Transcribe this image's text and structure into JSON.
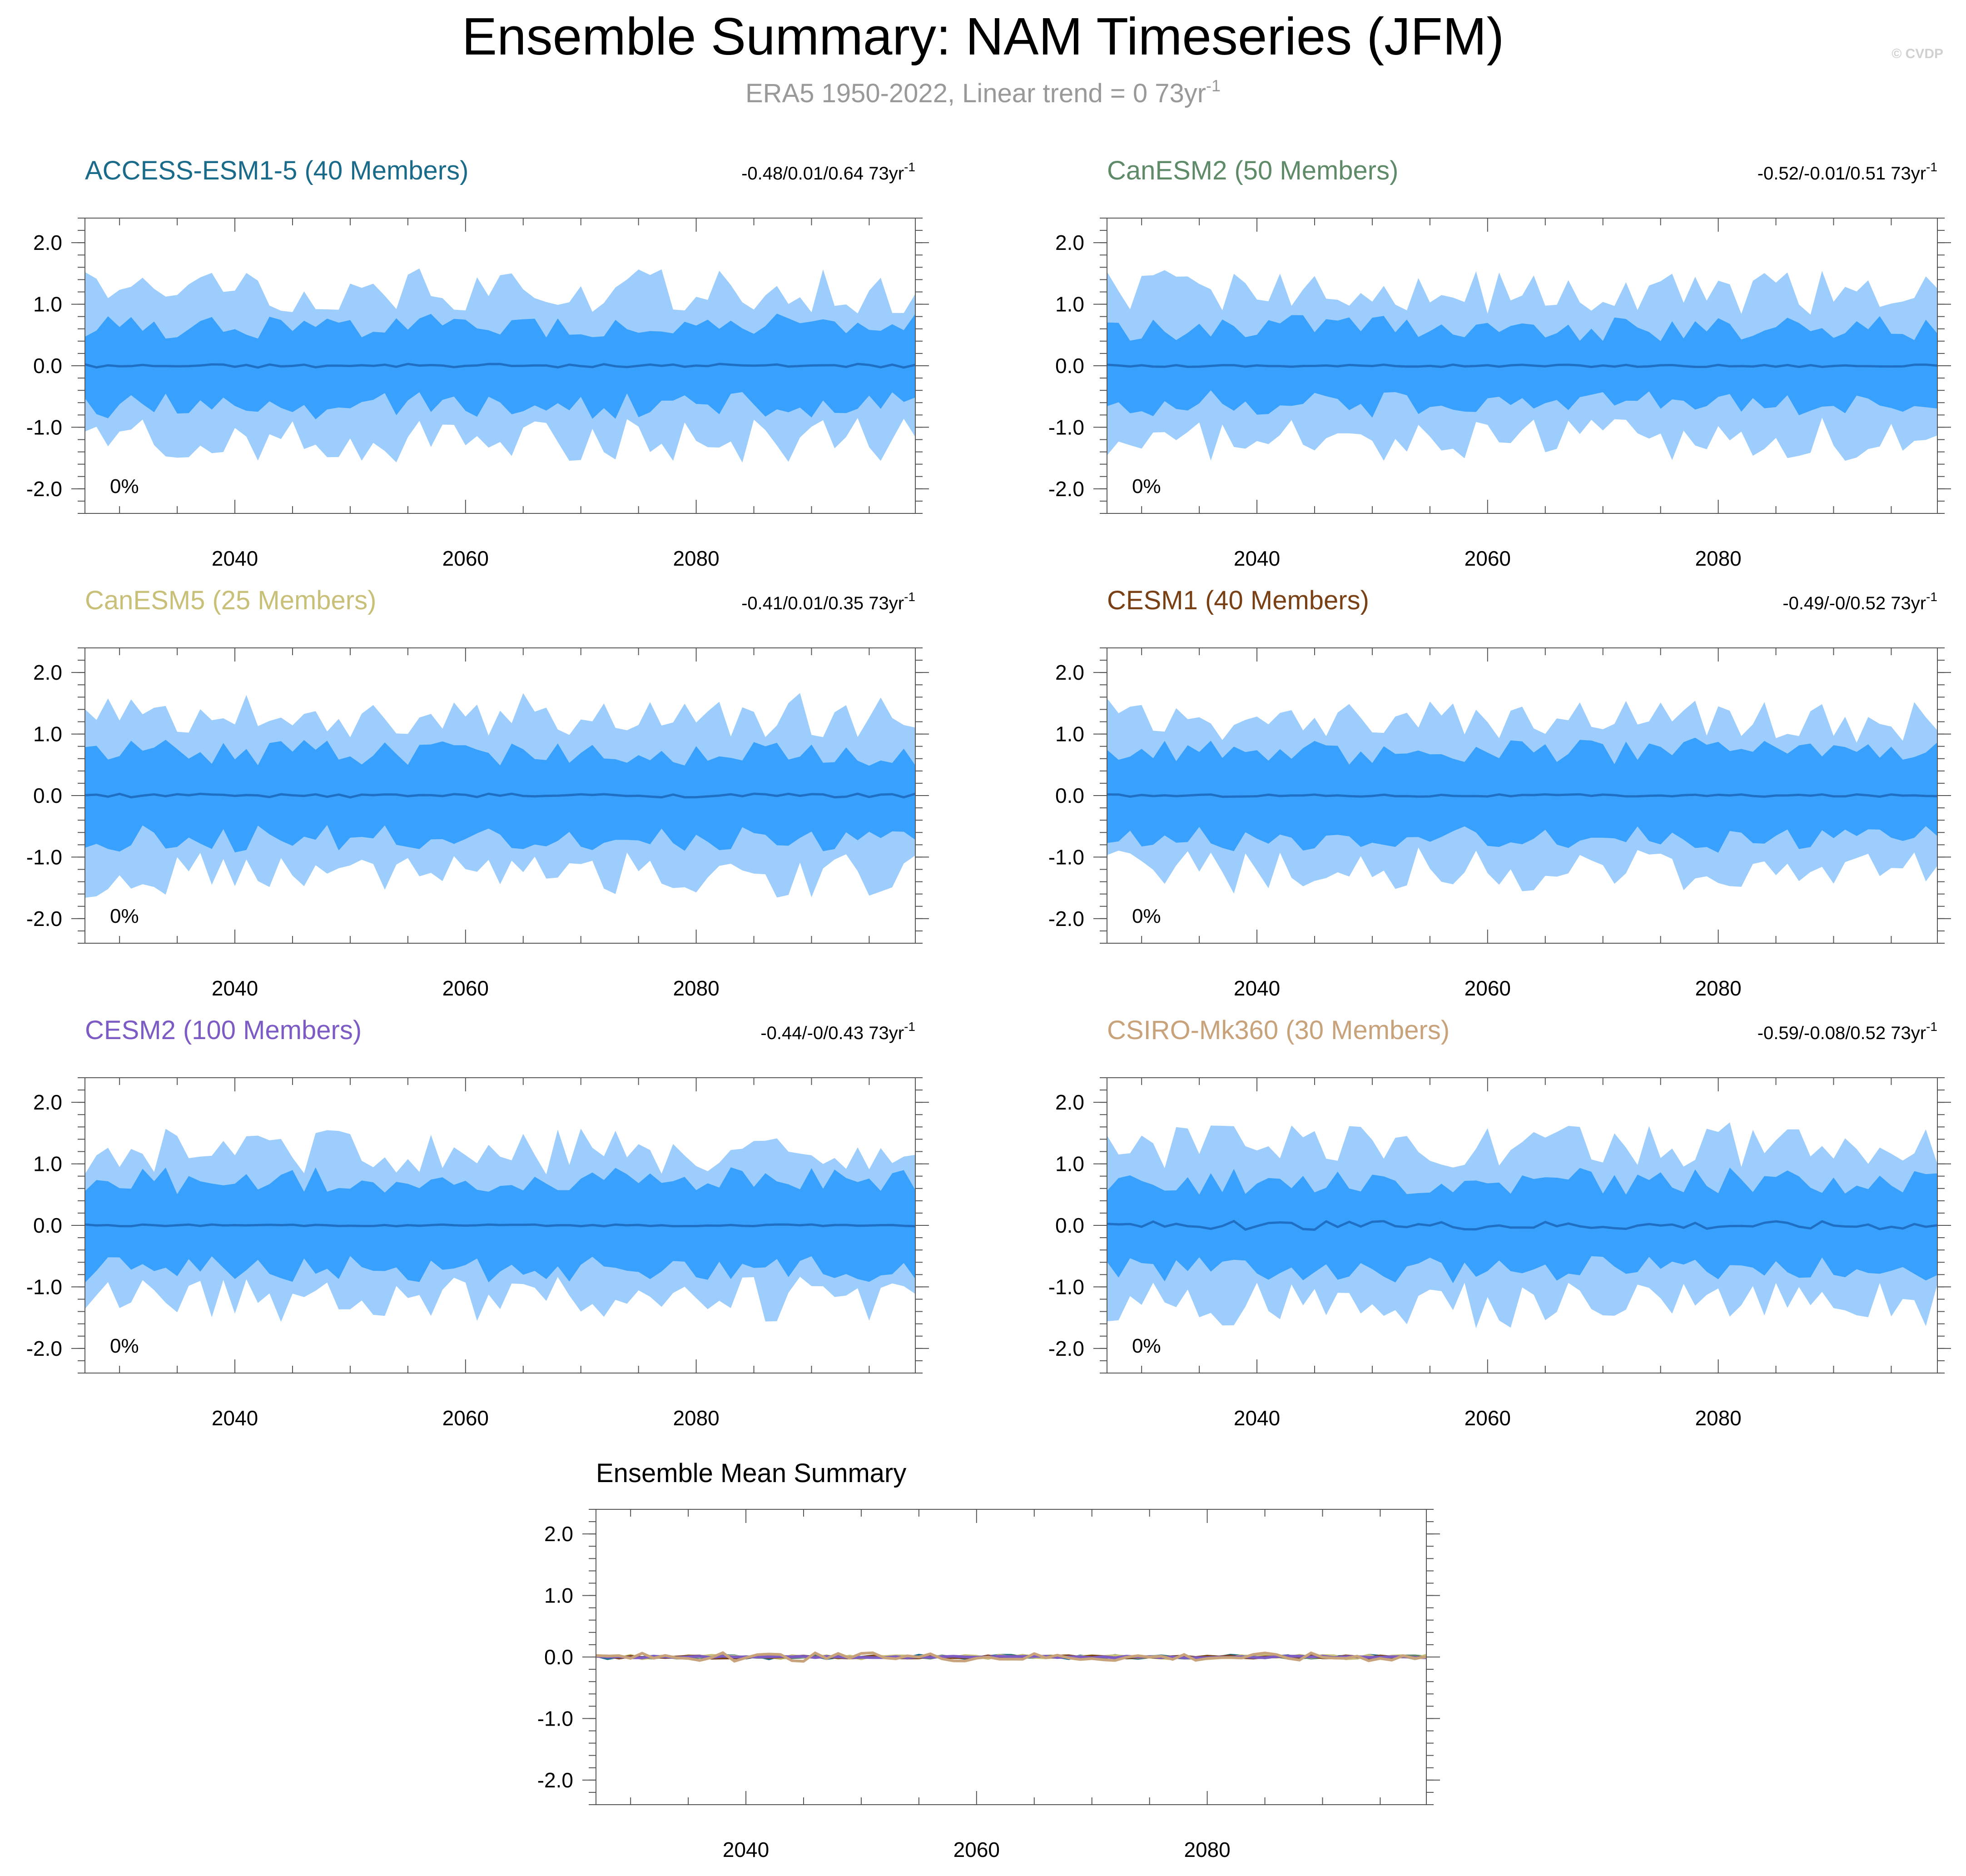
{
  "header": {
    "title": "Ensemble Summary: NAM Timeseries (JFM)",
    "subtitle_main": "ERA5 1950-2022, Linear trend = 0 73yr",
    "subtitle_sup": "-1",
    "credit": "© CVDP"
  },
  "colors": {
    "outer_band": "#9dcdfd",
    "inner_band": "#38a0fd",
    "mean_line": "#1f6fc4"
  },
  "chart_data": [
    {
      "type": "area",
      "title": "ACCESS-ESM1-5 (40 Members)",
      "title_color": "#1a6a8a",
      "stats": "-0.48/0.01/0.64 73yr",
      "stats_sup": "-1",
      "percent": "0%",
      "x_range": [
        2027,
        2099
      ],
      "ylim": [
        -2.4,
        2.4
      ],
      "xticks": [
        "2040",
        "2060",
        "2080"
      ],
      "yticks": [
        "2.0",
        "1.0",
        "0.0",
        "-1.0",
        "-2.0"
      ],
      "seed": 11,
      "outer_amp": 1.22,
      "inner_amp": 0.65,
      "mean_amp": 0.03,
      "mean_offset": 0.0
    },
    {
      "type": "area",
      "title": "CanESM2 (50 Members)",
      "title_color": "#5e8a68",
      "stats": "-0.52/-0.01/0.51 73yr",
      "stats_sup": "-1",
      "percent": "0%",
      "x_range": [
        2027,
        2099
      ],
      "ylim": [
        -2.4,
        2.4
      ],
      "xticks": [
        "2040",
        "2060",
        "2080"
      ],
      "yticks": [
        "2.0",
        "1.0",
        "0.0",
        "-1.0",
        "-2.0"
      ],
      "seed": 23,
      "outer_amp": 1.2,
      "inner_amp": 0.62,
      "mean_amp": 0.02,
      "mean_offset": 0.0
    },
    {
      "type": "area",
      "title": "CanESM5 (25 Members)",
      "title_color": "#c8c079",
      "stats": "-0.41/0.01/0.35 73yr",
      "stats_sup": "-1",
      "percent": "0%",
      "x_range": [
        2027,
        2099
      ],
      "ylim": [
        -2.4,
        2.4
      ],
      "xticks": [
        "2040",
        "2060",
        "2080"
      ],
      "yticks": [
        "2.0",
        "1.0",
        "0.0",
        "-1.0",
        "-2.0"
      ],
      "seed": 37,
      "outer_amp": 1.3,
      "inner_amp": 0.7,
      "mean_amp": 0.03,
      "mean_offset": 0.0
    },
    {
      "type": "area",
      "title": "CESM1 (40 Members)",
      "title_color": "#7a4015",
      "stats": "-0.49/-0/0.52 73yr",
      "stats_sup": "-1",
      "percent": "0%",
      "x_range": [
        2027,
        2099
      ],
      "ylim": [
        -2.4,
        2.4
      ],
      "xticks": [
        "2040",
        "2060",
        "2080"
      ],
      "yticks": [
        "2.0",
        "1.0",
        "0.0",
        "-1.0",
        "-2.0"
      ],
      "seed": 41,
      "outer_amp": 1.22,
      "inner_amp": 0.72,
      "mean_amp": 0.02,
      "mean_offset": 0.0
    },
    {
      "type": "area",
      "title": "CESM2 (100 Members)",
      "title_color": "#7c5cc4",
      "stats": "-0.44/-0/0.43 73yr",
      "stats_sup": "-1",
      "percent": "0%",
      "x_range": [
        2027,
        2099
      ],
      "ylim": [
        -2.4,
        2.4
      ],
      "xticks": [
        "2040",
        "2060",
        "2080"
      ],
      "yticks": [
        "2.0",
        "1.0",
        "0.0",
        "-1.0",
        "-2.0"
      ],
      "seed": 53,
      "outer_amp": 1.2,
      "inner_amp": 0.72,
      "mean_amp": 0.015,
      "mean_offset": 0.0
    },
    {
      "type": "area",
      "title": "CSIRO-Mk360 (30 Members)",
      "title_color": "#c8a27a",
      "stats": "-0.59/-0.08/0.52 73yr",
      "stats_sup": "-1",
      "percent": "0%",
      "x_range": [
        2027,
        2099
      ],
      "ylim": [
        -2.4,
        2.4
      ],
      "xticks": [
        "2040",
        "2060",
        "2080"
      ],
      "yticks": [
        "2.0",
        "1.0",
        "0.0",
        "-1.0",
        "-2.0"
      ],
      "seed": 67,
      "outer_amp": 1.3,
      "inner_amp": 0.72,
      "mean_amp": 0.07,
      "mean_offset": 0.0
    },
    {
      "type": "line",
      "title": "Ensemble Mean Summary",
      "x_range": [
        2027,
        2099
      ],
      "ylim": [
        -2.4,
        2.4
      ],
      "xticks": [
        "2040",
        "2060",
        "2080"
      ],
      "yticks": [
        "2.0",
        "1.0",
        "0.0",
        "-1.0",
        "-2.0"
      ],
      "series": [
        {
          "name": "ACCESS-ESM1-5",
          "color": "#1a6a8a",
          "seed": 11,
          "amp": 0.03
        },
        {
          "name": "CanESM2",
          "color": "#5e8a68",
          "seed": 23,
          "amp": 0.02
        },
        {
          "name": "CanESM5",
          "color": "#c8c079",
          "seed": 37,
          "amp": 0.03
        },
        {
          "name": "CESM1",
          "color": "#7a4015",
          "seed": 41,
          "amp": 0.02
        },
        {
          "name": "CESM2",
          "color": "#7c5cc4",
          "seed": 53,
          "amp": 0.015
        },
        {
          "name": "CSIRO-Mk360",
          "color": "#c8a27a",
          "seed": 67,
          "amp": 0.07
        }
      ]
    }
  ]
}
